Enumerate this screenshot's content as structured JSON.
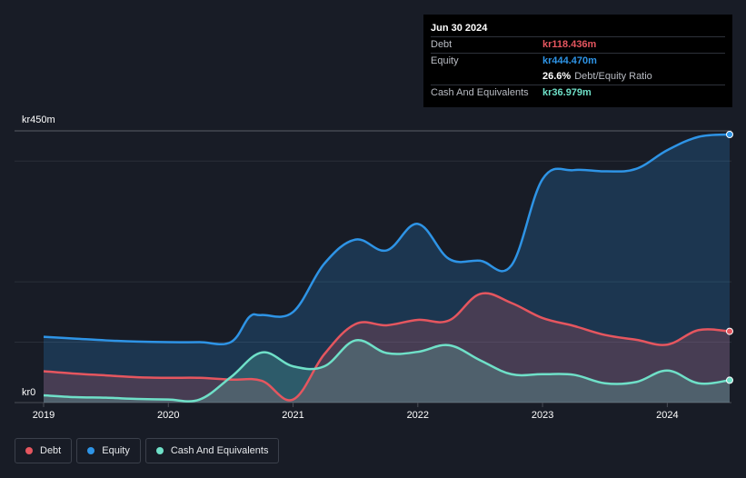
{
  "tooltip": {
    "date": "Jun 30 2024",
    "rows": [
      {
        "label": "Debt",
        "value": "kr118.436m",
        "color": "#e5565f"
      },
      {
        "label": "Equity",
        "value": "kr444.470m",
        "color": "#2e94e6"
      },
      {
        "label": "",
        "value": "26.6%",
        "suffix": "Debt/Equity Ratio",
        "color": "#ffffff"
      },
      {
        "label": "Cash And Equivalents",
        "value": "kr36.979m",
        "color": "#6fe0c8"
      }
    ]
  },
  "legend": [
    {
      "label": "Debt",
      "color": "#e5565f"
    },
    {
      "label": "Equity",
      "color": "#2e94e6"
    },
    {
      "label": "Cash And Equivalents",
      "color": "#6fe0c8"
    }
  ],
  "chart_data": {
    "type": "area",
    "y_top_label": "kr450m",
    "y_zero_label": "kr0",
    "ylim": [
      0,
      450
    ],
    "xlim": [
      2019.0,
      2024.5
    ],
    "x_ticks": [
      2019,
      2020,
      2021,
      2022,
      2023,
      2024
    ],
    "x_tick_labels": [
      "2019",
      "2020",
      "2021",
      "2022",
      "2023",
      "2024"
    ],
    "series": [
      {
        "name": "Equity",
        "color": "#2e94e6",
        "x": [
          2019.0,
          2019.25,
          2019.5,
          2019.75,
          2020.0,
          2020.25,
          2020.5,
          2020.65,
          2020.75,
          2021.0,
          2021.25,
          2021.5,
          2021.75,
          2022.0,
          2022.25,
          2022.5,
          2022.75,
          2023.0,
          2023.25,
          2023.5,
          2023.75,
          2024.0,
          2024.25,
          2024.5
        ],
        "values": [
          109,
          106,
          103,
          101,
          100,
          100,
          100,
          142,
          145,
          150,
          230,
          270,
          252,
          296,
          238,
          235,
          227,
          370,
          385,
          383,
          387,
          418,
          440,
          444
        ]
      },
      {
        "name": "Debt",
        "color": "#e5565f",
        "x": [
          2019.0,
          2019.25,
          2019.5,
          2019.75,
          2020.0,
          2020.25,
          2020.5,
          2020.75,
          2021.0,
          2021.25,
          2021.5,
          2021.75,
          2022.0,
          2022.25,
          2022.5,
          2022.75,
          2023.0,
          2023.25,
          2023.5,
          2023.75,
          2024.0,
          2024.25,
          2024.5
        ],
        "values": [
          52,
          48,
          45,
          42,
          41,
          41,
          38,
          36,
          5,
          80,
          130,
          128,
          137,
          136,
          180,
          165,
          140,
          127,
          112,
          104,
          96,
          120,
          118
        ]
      },
      {
        "name": "Cash And Equivalents",
        "color": "#6fe0c8",
        "x": [
          2019.0,
          2019.25,
          2019.5,
          2019.75,
          2020.0,
          2020.25,
          2020.5,
          2020.75,
          2021.0,
          2021.25,
          2021.5,
          2021.75,
          2022.0,
          2022.25,
          2022.5,
          2022.75,
          2023.0,
          2023.25,
          2023.5,
          2023.75,
          2024.0,
          2024.25,
          2024.5
        ],
        "values": [
          12,
          9,
          8,
          6,
          5,
          5,
          42,
          83,
          60,
          60,
          103,
          82,
          84,
          95,
          70,
          47,
          47,
          46,
          32,
          34,
          53,
          32,
          37
        ]
      }
    ]
  }
}
